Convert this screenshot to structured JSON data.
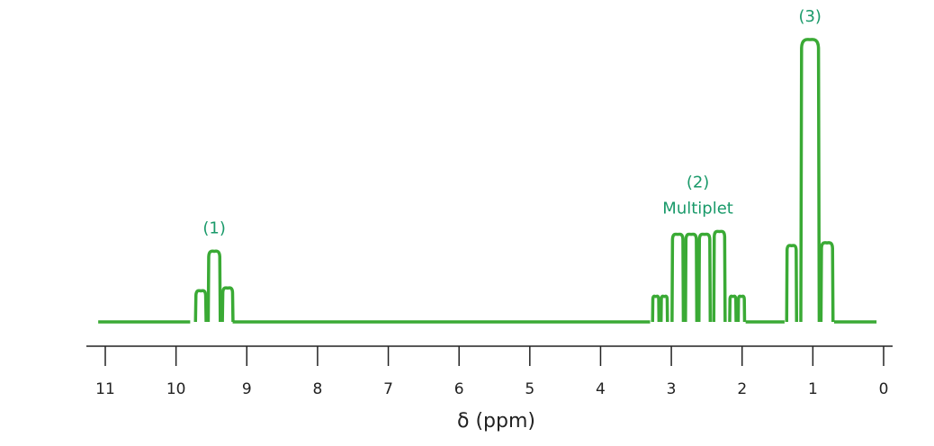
{
  "chart_data": {
    "type": "line",
    "title": "",
    "xlabel": "δ (ppm)",
    "ylabel": "",
    "xlim": [
      11,
      0
    ],
    "x_reversed": true,
    "grid": false,
    "xticks": [
      {
        "value": 11,
        "label": "11"
      },
      {
        "value": 10,
        "label": "10"
      },
      {
        "value": 9,
        "label": "9"
      },
      {
        "value": 8,
        "label": "8"
      },
      {
        "value": 7,
        "label": "7"
      },
      {
        "value": 6,
        "label": "6"
      },
      {
        "value": 5,
        "label": "5"
      },
      {
        "value": 4,
        "label": "4"
      },
      {
        "value": 3,
        "label": "3"
      },
      {
        "value": 2,
        "label": "2"
      },
      {
        "value": 1,
        "label": "1"
      },
      {
        "value": 0,
        "label": "0"
      }
    ],
    "baseline_range": [
      11.1,
      0.1
    ],
    "line_color": "#3aaa35",
    "label_color": "#1a9a6a",
    "signals": [
      {
        "label_lines": [
          "(1)"
        ],
        "region": [
          9.8,
          9.2
        ],
        "peaks": [
          {
            "center": 9.65,
            "height": 0.11,
            "width": 0.15
          },
          {
            "center": 9.46,
            "height": 0.25,
            "width": 0.17
          },
          {
            "center": 9.27,
            "height": 0.12,
            "width": 0.15
          }
        ]
      },
      {
        "label_lines": [
          "(2)",
          "Multiplet"
        ],
        "region": [
          3.3,
          1.95
        ],
        "peaks": [
          {
            "center": 3.22,
            "height": 0.09,
            "width": 0.09
          },
          {
            "center": 3.1,
            "height": 0.09,
            "width": 0.09
          },
          {
            "center": 2.91,
            "height": 0.31,
            "width": 0.16
          },
          {
            "center": 2.72,
            "height": 0.31,
            "width": 0.16
          },
          {
            "center": 2.53,
            "height": 0.31,
            "width": 0.16
          },
          {
            "center": 2.32,
            "height": 0.32,
            "width": 0.16
          },
          {
            "center": 2.13,
            "height": 0.09,
            "width": 0.09
          },
          {
            "center": 2.01,
            "height": 0.09,
            "width": 0.09
          }
        ]
      },
      {
        "label_lines": [
          "(3)"
        ],
        "region": [
          1.4,
          0.7
        ],
        "peaks": [
          {
            "center": 1.3,
            "height": 0.27,
            "width": 0.14
          },
          {
            "center": 1.04,
            "height": 1.0,
            "width": 0.26
          },
          {
            "center": 0.8,
            "height": 0.28,
            "width": 0.17
          }
        ]
      }
    ]
  }
}
